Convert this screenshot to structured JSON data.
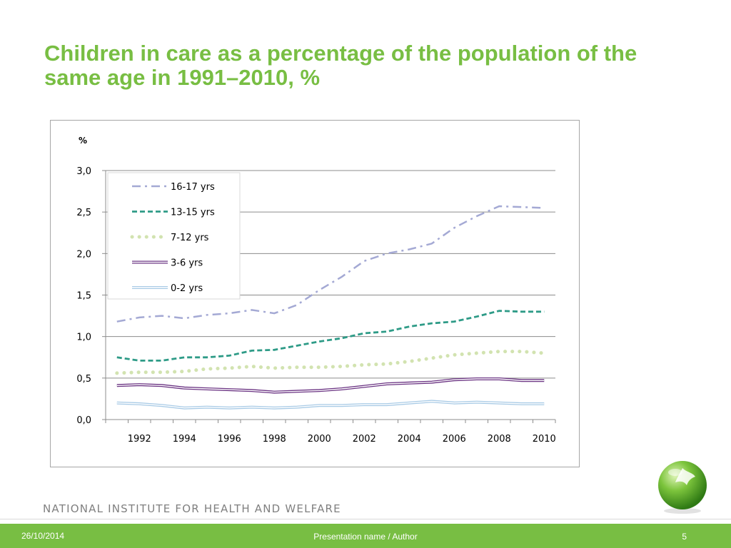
{
  "slide": {
    "title": "Children in care as a percentage of the population of the same age in 1991–2010, %",
    "institute": "NATIONAL INSTITUTE FOR HEALTH AND WELFARE",
    "footer_date": "26/10/2014",
    "footer_presentation": "Presentation name / Author",
    "page_number": "5"
  },
  "colors": {
    "title": "#78be43",
    "footer_bar": "#78be43"
  },
  "chart_data": {
    "type": "line",
    "title": "",
    "xlabel": "",
    "ylabel": "%",
    "ylim": [
      0,
      3
    ],
    "yticks": [
      "0,0",
      "0,5",
      "1,0",
      "1,5",
      "2,0",
      "2,5",
      "3,0"
    ],
    "xticks": [
      "1992",
      "1994",
      "1996",
      "1998",
      "2000",
      "2002",
      "2004",
      "2006",
      "2008",
      "2010"
    ],
    "x": [
      1991,
      1992,
      1993,
      1994,
      1995,
      1996,
      1997,
      1998,
      1999,
      2000,
      2001,
      2002,
      2003,
      2004,
      2005,
      2006,
      2007,
      2008,
      2009,
      2010
    ],
    "grid": true,
    "legend": "top-left",
    "series": [
      {
        "name": "16-17 yrs",
        "style": "dashdot",
        "color": "#a4a9d4",
        "values": [
          1.18,
          1.23,
          1.25,
          1.22,
          1.26,
          1.28,
          1.32,
          1.28,
          1.38,
          1.56,
          1.72,
          1.91,
          2.0,
          2.05,
          2.12,
          2.31,
          2.45,
          2.57,
          2.56,
          2.55
        ]
      },
      {
        "name": "13-15 yrs",
        "style": "dashed",
        "color": "#2e9b87",
        "values": [
          0.75,
          0.71,
          0.71,
          0.75,
          0.75,
          0.77,
          0.83,
          0.84,
          0.89,
          0.94,
          0.98,
          1.04,
          1.06,
          1.12,
          1.16,
          1.18,
          1.24,
          1.31,
          1.3,
          1.3
        ]
      },
      {
        "name": "7-12 yrs",
        "style": "dotted",
        "color": "#d2e3b0",
        "values": [
          0.56,
          0.57,
          0.57,
          0.58,
          0.61,
          0.62,
          0.64,
          0.62,
          0.63,
          0.63,
          0.64,
          0.66,
          0.67,
          0.7,
          0.74,
          0.78,
          0.8,
          0.82,
          0.82,
          0.8
        ]
      },
      {
        "name": "3-6 yrs",
        "style": "double",
        "color": "#6b3483",
        "values": [
          0.41,
          0.42,
          0.41,
          0.38,
          0.37,
          0.36,
          0.35,
          0.33,
          0.34,
          0.35,
          0.37,
          0.4,
          0.43,
          0.44,
          0.45,
          0.48,
          0.49,
          0.49,
          0.47,
          0.47
        ]
      },
      {
        "name": "0-2 yrs",
        "style": "double",
        "color": "#a9cbe6",
        "values": [
          0.2,
          0.19,
          0.17,
          0.14,
          0.15,
          0.14,
          0.15,
          0.14,
          0.15,
          0.17,
          0.17,
          0.18,
          0.18,
          0.2,
          0.22,
          0.2,
          0.21,
          0.2,
          0.19,
          0.19
        ]
      }
    ]
  }
}
